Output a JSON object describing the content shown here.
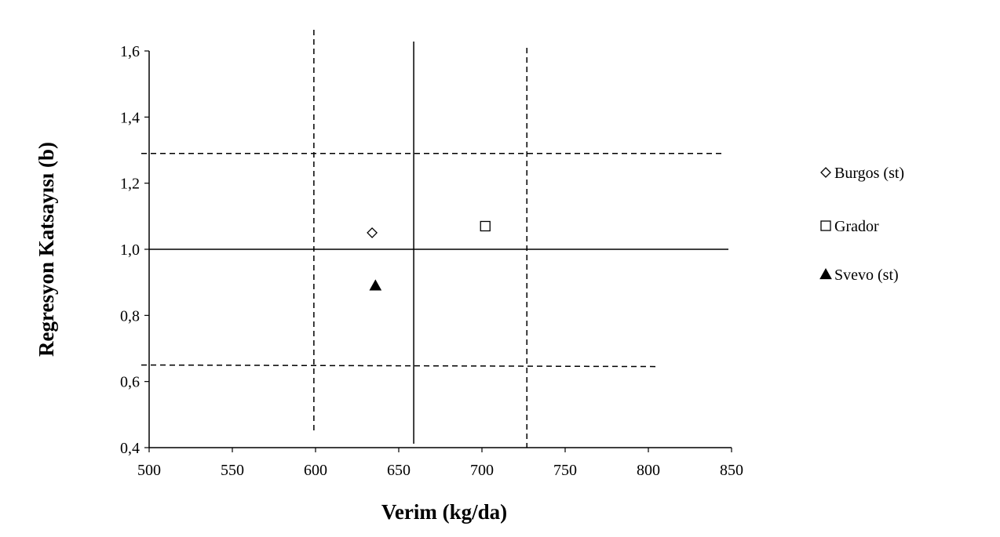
{
  "chart_data": {
    "type": "scatter",
    "xlabel": "Verim (kg/da)",
    "ylabel": "Regresyon Katsayısı (b)",
    "xlim": [
      500,
      850
    ],
    "ylim": [
      0.4,
      1.6
    ],
    "xticks": [
      500,
      550,
      600,
      650,
      700,
      750,
      800,
      850
    ],
    "yticks": [
      0.4,
      0.6,
      0.8,
      1.0,
      1.2,
      1.4,
      1.6
    ],
    "xtick_labels": [
      "500",
      "550",
      "600",
      "650",
      "700",
      "750",
      "800",
      "850"
    ],
    "ytick_labels": [
      "0,4",
      "0,6",
      "0,8",
      "1,0",
      "1,2",
      "1,4",
      "1,6"
    ],
    "grid": false,
    "legend_position": "right",
    "series": [
      {
        "name": "Burgos (st)",
        "marker": "diamond-open",
        "x": [
          634
        ],
        "y": [
          1.05
        ]
      },
      {
        "name": "Grador",
        "marker": "square-open",
        "x": [
          702
        ],
        "y": [
          1.07
        ]
      },
      {
        "name": "Svevo (st)",
        "marker": "triangle-filled",
        "x": [
          636
        ],
        "y": [
          0.89
        ]
      }
    ],
    "reference_lines": {
      "mean_yield": 659,
      "mean_b": 1.0,
      "yield_limits": [
        599,
        727
      ],
      "b_limits": [
        0.65,
        1.29
      ]
    }
  }
}
